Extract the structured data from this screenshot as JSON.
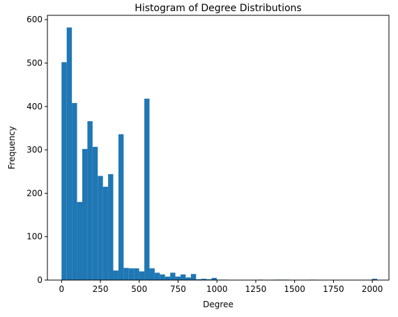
{
  "chart_data": {
    "type": "bar",
    "title": "Histogram of Degree Distributions",
    "xlabel": "Degree",
    "ylabel": "Frequency",
    "xlim": [
      -91,
      2107
    ],
    "ylim": [
      0,
      610
    ],
    "xticks": [
      0,
      250,
      500,
      750,
      1000,
      1250,
      1500,
      1750,
      2000
    ],
    "yticks": [
      0,
      100,
      200,
      300,
      400,
      500,
      600
    ],
    "bin_width": 33.3,
    "bin_start": 0,
    "values": [
      502,
      582,
      408,
      180,
      302,
      366,
      307,
      240,
      215,
      244,
      22,
      336,
      28,
      27,
      27,
      20,
      418,
      27,
      17,
      13,
      8,
      17,
      8,
      13,
      6,
      14,
      2,
      3,
      2,
      5,
      1,
      1,
      0,
      0,
      0,
      0,
      0,
      0,
      1,
      0,
      0,
      1,
      1,
      1,
      0,
      0,
      0,
      0,
      1,
      0,
      0,
      0,
      0,
      0,
      0,
      0,
      0,
      0,
      0,
      0,
      3
    ],
    "bar_color": "#1f77b4",
    "grid": false,
    "legend": "none"
  }
}
